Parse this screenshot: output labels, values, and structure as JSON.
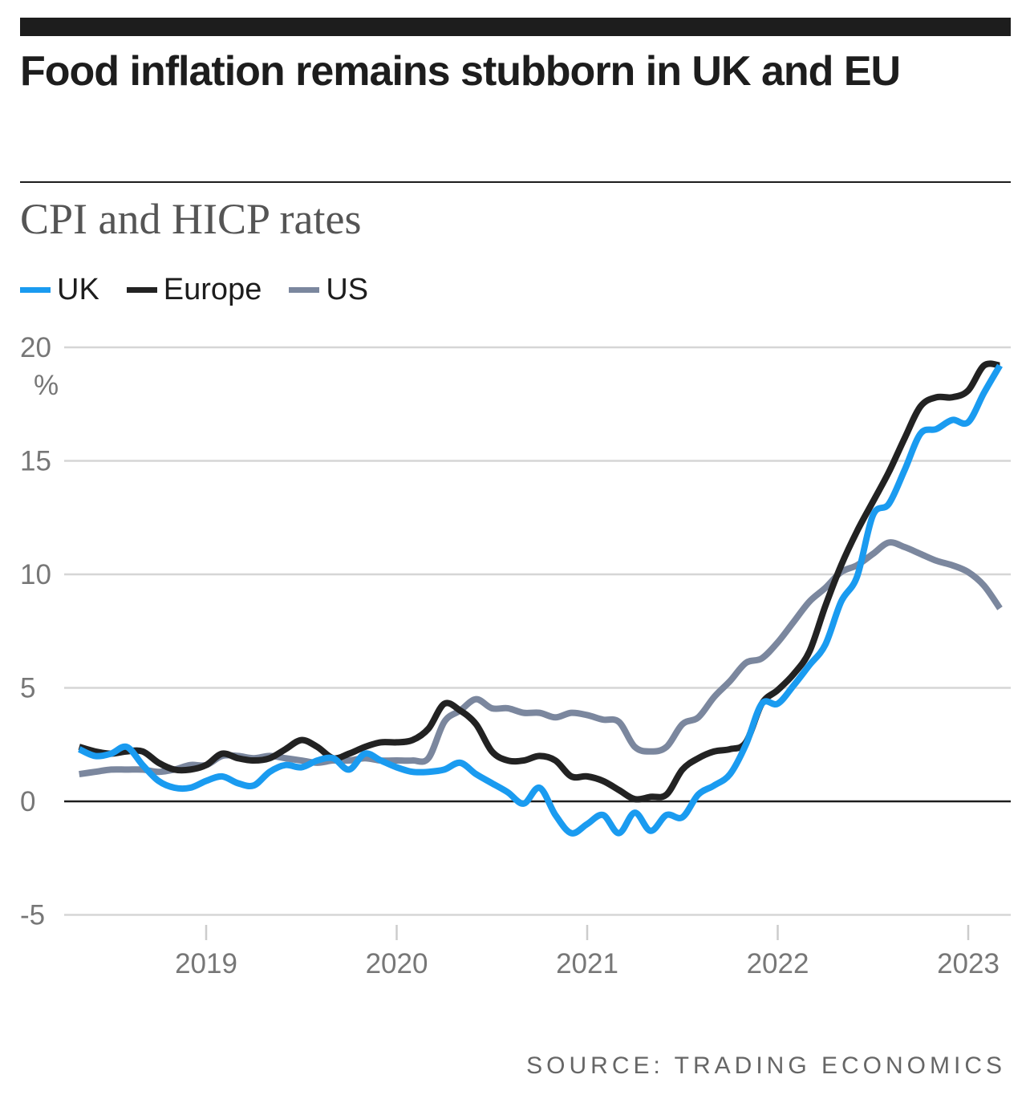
{
  "title": "Food inflation remains stubborn in UK and EU",
  "subtitle": "CPI and HICP rates",
  "source": "SOURCE: TRADING ECONOMICS",
  "chart_data": {
    "type": "line",
    "title": "Food inflation remains stubborn in UK and EU",
    "subtitle": "CPI and HICP rates",
    "ylabel": "%",
    "ylim": [
      -5,
      20
    ],
    "yticks": [
      "20",
      "15",
      "10",
      "5",
      "0",
      "-5"
    ],
    "ytick_values": [
      20,
      15,
      10,
      5,
      0,
      -5
    ],
    "xticks": [
      "2019",
      "2020",
      "2021",
      "2022",
      "2023"
    ],
    "grid": true,
    "legend": "top-left",
    "x": [
      "2018-05",
      "2018-06",
      "2018-07",
      "2018-08",
      "2018-09",
      "2018-10",
      "2018-11",
      "2018-12",
      "2019-01",
      "2019-02",
      "2019-03",
      "2019-04",
      "2019-05",
      "2019-06",
      "2019-07",
      "2019-08",
      "2019-09",
      "2019-10",
      "2019-11",
      "2019-12",
      "2020-01",
      "2020-02",
      "2020-03",
      "2020-04",
      "2020-05",
      "2020-06",
      "2020-07",
      "2020-08",
      "2020-09",
      "2020-10",
      "2020-11",
      "2020-12",
      "2021-01",
      "2021-02",
      "2021-03",
      "2021-04",
      "2021-05",
      "2021-06",
      "2021-07",
      "2021-08",
      "2021-09",
      "2021-10",
      "2021-11",
      "2021-12",
      "2022-01",
      "2022-02",
      "2022-03",
      "2022-04",
      "2022-05",
      "2022-06",
      "2022-07",
      "2022-08",
      "2022-09",
      "2022-10",
      "2022-11",
      "2022-12",
      "2023-01",
      "2023-02",
      "2023-03"
    ],
    "series": [
      {
        "name": "UK",
        "color": "#1a9bf0",
        "values": [
          2.3,
          2.0,
          2.1,
          2.4,
          1.6,
          0.9,
          0.6,
          0.6,
          0.9,
          1.1,
          0.8,
          0.7,
          1.3,
          1.6,
          1.5,
          1.8,
          1.9,
          1.4,
          2.1,
          1.8,
          1.5,
          1.3,
          1.3,
          1.4,
          1.7,
          1.2,
          0.8,
          0.4,
          -0.1,
          0.6,
          -0.6,
          -1.4,
          -1.0,
          -0.6,
          -1.4,
          -0.5,
          -1.3,
          -0.6,
          -0.7,
          0.3,
          0.7,
          1.2,
          2.5,
          4.3,
          4.3,
          5.1,
          6.0,
          6.9,
          8.8,
          9.9,
          12.6,
          13.1,
          14.6,
          16.2,
          16.4,
          16.8,
          16.7,
          18.0,
          19.2
        ]
      },
      {
        "name": "Europe",
        "color": "#222222",
        "values": [
          2.4,
          2.2,
          2.1,
          2.2,
          2.2,
          1.7,
          1.4,
          1.4,
          1.6,
          2.1,
          1.9,
          1.8,
          1.9,
          2.3,
          2.7,
          2.4,
          1.9,
          2.1,
          2.4,
          2.6,
          2.6,
          2.7,
          3.2,
          4.3,
          4.0,
          3.4,
          2.2,
          1.8,
          1.8,
          2.0,
          1.8,
          1.1,
          1.1,
          0.9,
          0.5,
          0.1,
          0.2,
          0.3,
          1.4,
          1.9,
          2.2,
          2.3,
          2.6,
          4.3,
          4.9,
          5.6,
          6.6,
          8.6,
          10.4,
          11.9,
          13.2,
          14.5,
          16.0,
          17.4,
          17.8,
          17.8,
          18.1,
          19.2,
          19.2
        ]
      },
      {
        "name": "US",
        "color": "#7b879e",
        "values": [
          1.2,
          1.3,
          1.4,
          1.4,
          1.4,
          1.3,
          1.4,
          1.6,
          1.6,
          2.0,
          2.0,
          1.9,
          2.0,
          1.9,
          1.8,
          1.7,
          1.8,
          1.8,
          1.9,
          1.8,
          1.8,
          1.8,
          1.9,
          3.5,
          4.0,
          4.5,
          4.1,
          4.1,
          3.9,
          3.9,
          3.7,
          3.9,
          3.8,
          3.6,
          3.5,
          2.4,
          2.2,
          2.4,
          3.4,
          3.7,
          4.6,
          5.3,
          6.1,
          6.3,
          7.0,
          7.9,
          8.8,
          9.4,
          10.1,
          10.4,
          10.9,
          11.4,
          11.2,
          10.9,
          10.6,
          10.4,
          10.1,
          9.5,
          8.5
        ]
      }
    ]
  }
}
